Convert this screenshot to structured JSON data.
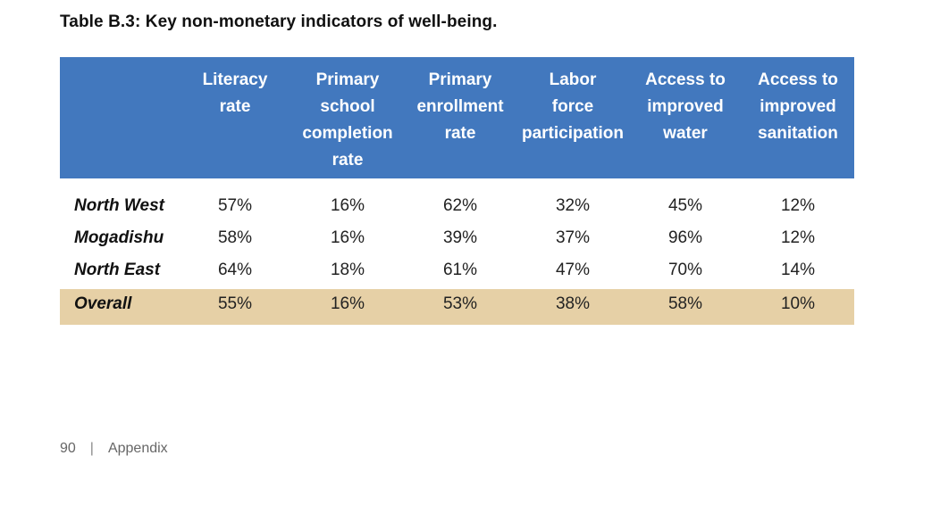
{
  "title": "Table B.3: Key non-monetary indicators of well-being.",
  "table": {
    "columns": [
      "Literacy\nrate",
      "Primary\nschool\ncompletion\nrate",
      "Primary\nenrollment\nrate",
      "Labor\nforce\nparticipation",
      "Access to\nimproved\nwater",
      "Access to\nimproved\nsanitation"
    ],
    "rows": [
      {
        "label": "North West",
        "values": [
          "57%",
          "16%",
          "62%",
          "32%",
          "45%",
          "12%"
        ]
      },
      {
        "label": "Mogadishu",
        "values": [
          "58%",
          "16%",
          "39%",
          "37%",
          "96%",
          "12%"
        ]
      },
      {
        "label": "North East",
        "values": [
          "64%",
          "18%",
          "61%",
          "47%",
          "70%",
          "14%"
        ]
      },
      {
        "label": "Overall",
        "values": [
          "55%",
          "16%",
          "53%",
          "38%",
          "58%",
          "10%"
        ]
      }
    ]
  },
  "footer": {
    "page_number": "90",
    "separator": "|",
    "section": "Appendix"
  },
  "colors": {
    "header_bg": "#4278be",
    "overall_bg": "#e6d0a6"
  }
}
